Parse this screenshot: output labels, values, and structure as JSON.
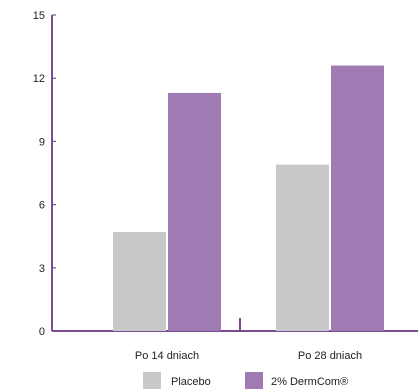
{
  "chart_data": {
    "type": "bar",
    "title": "",
    "xlabel": "",
    "ylabel": "",
    "categories": [
      "Po 14 dniach",
      "Po 28 dniach"
    ],
    "series": [
      {
        "name": "Placebo",
        "values": [
          4.7,
          7.9
        ],
        "color": "#c8c8c8"
      },
      {
        "name": "2% DermCom®",
        "values": [
          11.3,
          12.6
        ],
        "color": "#a07ab2"
      }
    ],
    "ylim": [
      0,
      15
    ],
    "yticks": [
      0,
      3,
      6,
      9,
      12,
      15
    ],
    "grid": false,
    "legend": "bottom-center",
    "axis_color": "#7b4a93"
  }
}
